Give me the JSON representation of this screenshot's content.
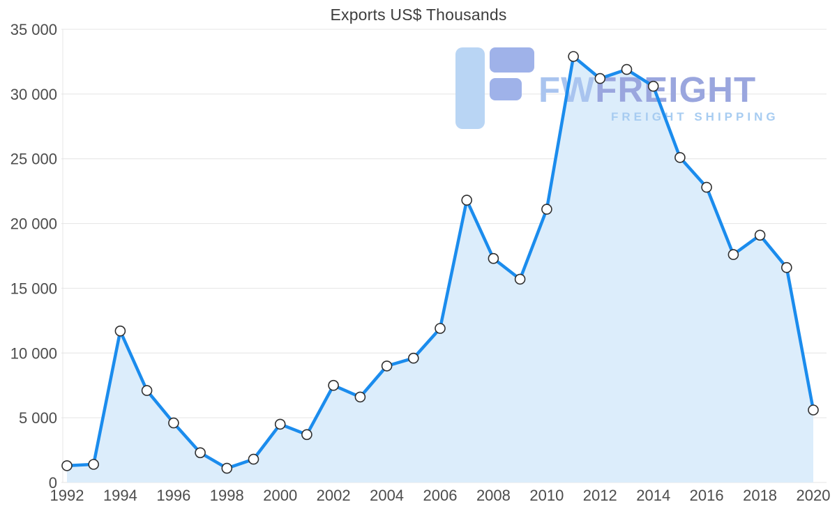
{
  "title": "Exports US$ Thousands",
  "watermark": {
    "brand_fw": "FW",
    "brand_rest": "FREIGHT",
    "tagline": "FREIGHT SHIPPING",
    "colors": {
      "logo_light": "#b9d5f4",
      "logo_dark": "#9fb2e9",
      "brand_fw": "#a9c4ef",
      "brand_rest": "#9aa6de",
      "tagline": "#a7ccf1"
    }
  },
  "chart_data": {
    "type": "area",
    "title": "Exports US$ Thousands",
    "xlabel": "",
    "ylabel": "",
    "x": [
      1992,
      1993,
      1994,
      1995,
      1996,
      1997,
      1998,
      1999,
      2000,
      2001,
      2002,
      2003,
      2004,
      2005,
      2006,
      2007,
      2008,
      2009,
      2010,
      2011,
      2012,
      2013,
      2014,
      2015,
      2016,
      2017,
      2018,
      2019,
      2020
    ],
    "values": [
      1300,
      1400,
      11700,
      7100,
      4600,
      2300,
      1100,
      1800,
      4500,
      3700,
      7500,
      6600,
      9000,
      9600,
      11900,
      21800,
      17300,
      15700,
      21100,
      32900,
      31200,
      31900,
      30600,
      25100,
      22800,
      17600,
      19100,
      16600,
      5600
    ],
    "ylim": [
      0,
      35000
    ],
    "yticks": {
      "values": [
        0,
        5000,
        10000,
        15000,
        20000,
        25000,
        30000,
        35000
      ],
      "labels": [
        "0",
        "5 000",
        "10 000",
        "15 000",
        "20 000",
        "25 000",
        "30 000",
        "35 000"
      ]
    },
    "xticks": [
      1992,
      1994,
      1996,
      1998,
      2000,
      2002,
      2004,
      2006,
      2008,
      2010,
      2012,
      2014,
      2016,
      2018,
      2020
    ],
    "grid": true,
    "legend": "none",
    "line_color": "#1b8ced",
    "fill_color": "#dcedfb",
    "grid_color": "#e4e4e4",
    "marker_fill": "#ffffff",
    "marker_stroke": "#2f2f2f"
  }
}
